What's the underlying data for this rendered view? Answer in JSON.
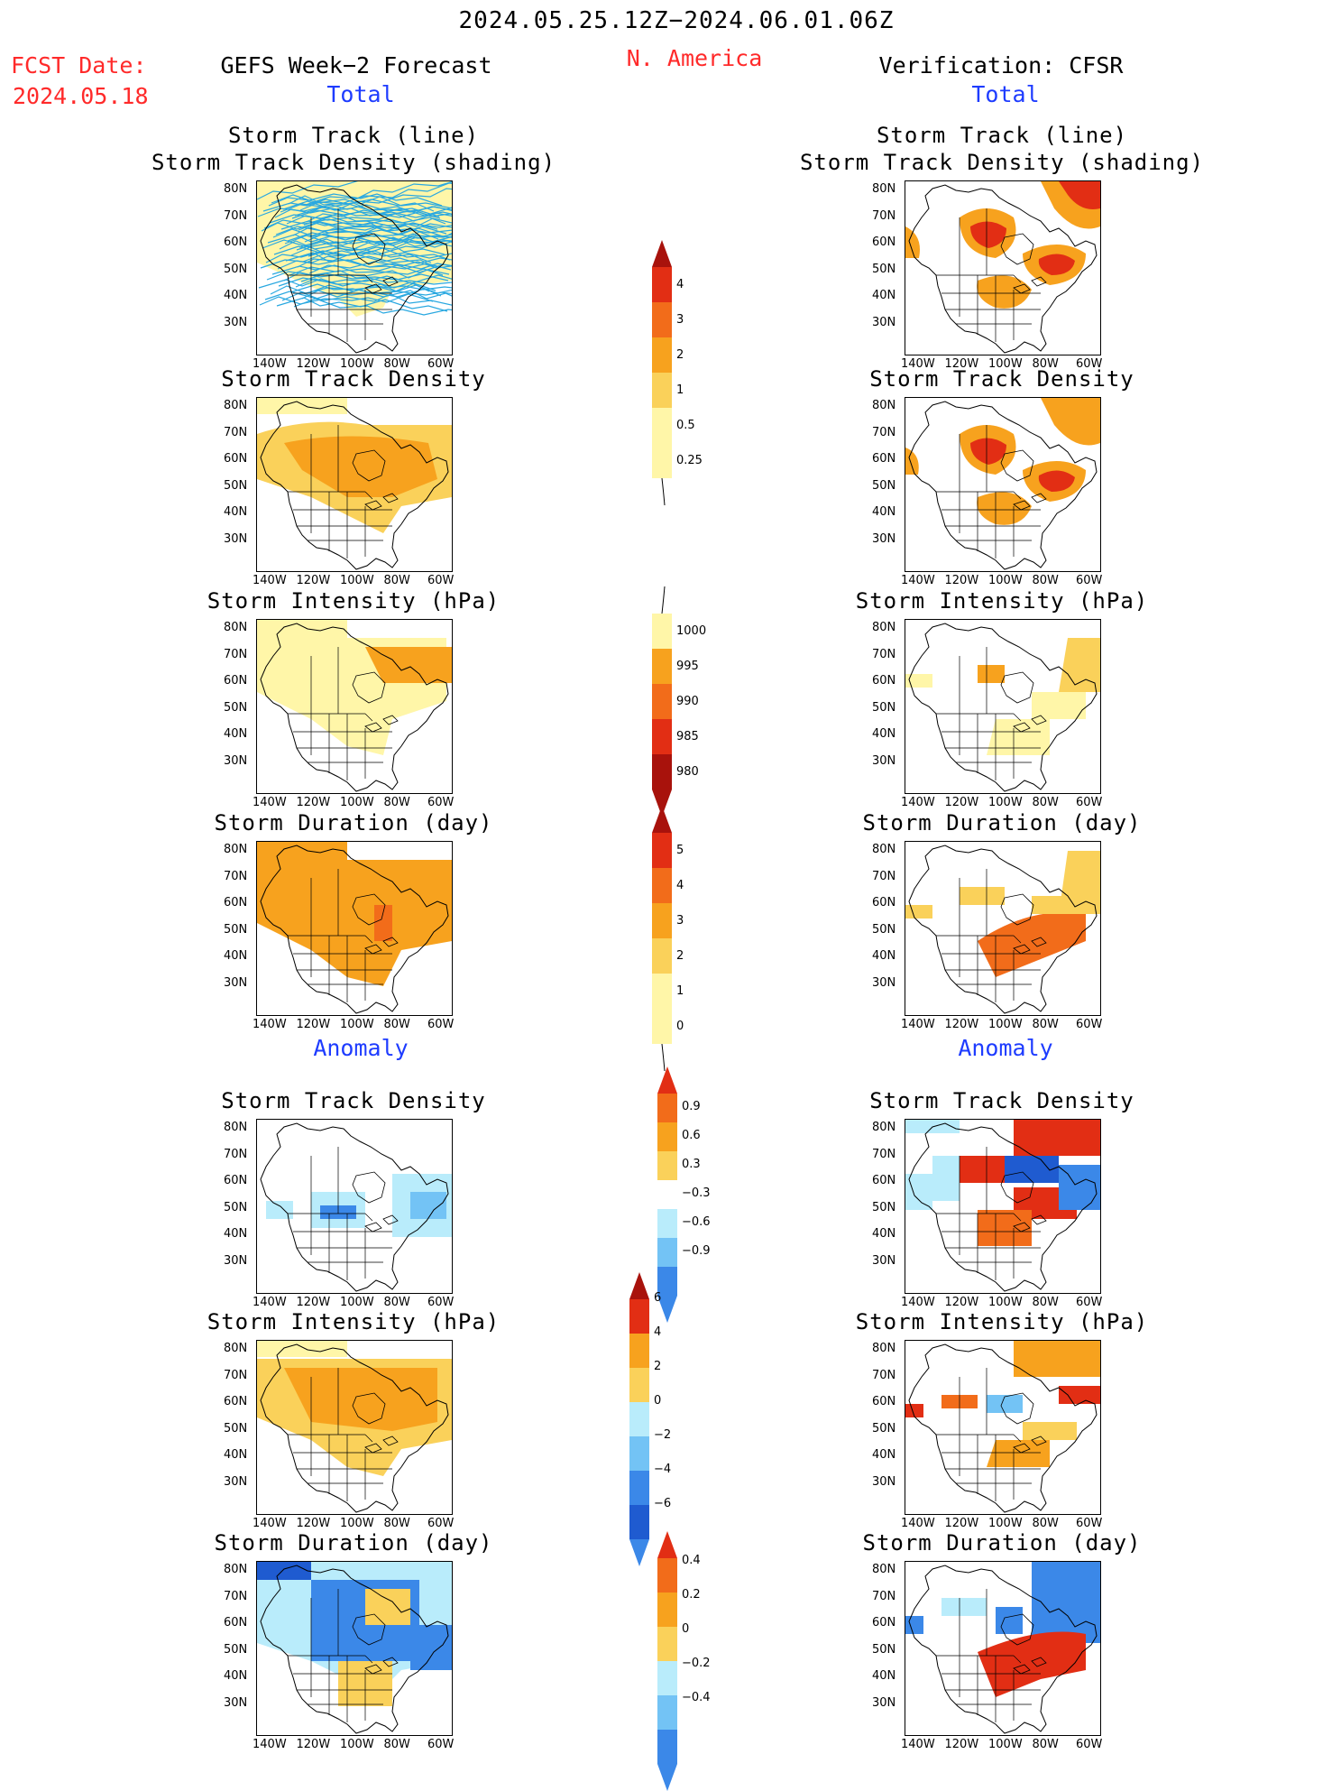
{
  "header": {
    "date_range": "2024.05.25.12Z−2024.06.01.06Z",
    "region": "N. America",
    "fcst_date_label": "FCST Date:",
    "fcst_date": "2024.05.18",
    "left_title": "GEFS Week−2 Forecast",
    "right_title": "Verification: CFSR",
    "total": "Total",
    "anomaly": "Anomaly"
  },
  "panel_titles": {
    "track_line": "Storm Track (line)",
    "track_density_shading": "Storm Track Density (shading)",
    "track_density": "Storm Track Density",
    "intensity": "Storm Intensity (hPa)",
    "duration": "Storm Duration (day)"
  },
  "axes": {
    "lat_labels": [
      "80N",
      "70N",
      "60N",
      "50N",
      "40N",
      "30N"
    ],
    "lon_labels": [
      "140W",
      "120W",
      "100W",
      "80W",
      "60W"
    ]
  },
  "colorbars": {
    "track_density_total": [
      "4",
      "3",
      "2",
      "1",
      "0.5",
      "0.25"
    ],
    "intensity_total": [
      "1000",
      "995",
      "990",
      "985",
      "980"
    ],
    "duration_total": [
      "5",
      "4",
      "3",
      "2",
      "1",
      "0"
    ],
    "track_density_anom": [
      "0.9",
      "0.6",
      "0.3",
      "−0.3",
      "−0.6",
      "−0.9"
    ],
    "intensity_anom": [
      "6",
      "4",
      "2",
      "0",
      "−2",
      "−4",
      "−6"
    ],
    "duration_anom": [
      "0.4",
      "0.2",
      "0",
      "−0.2",
      "−0.4"
    ]
  },
  "colors": {
    "yellow_light": "#fff6a8",
    "yellow": "#fad15a",
    "orange": "#f7a21e",
    "orange_dark": "#f26c1a",
    "red": "#e22e14",
    "dark_red": "#a8120c",
    "blue_light": "#b9ecfb",
    "blue_mid": "#73c3f5",
    "blue": "#3b88e8",
    "blue_dark": "#1f5bd0",
    "track_line": "#29a8e0"
  }
}
